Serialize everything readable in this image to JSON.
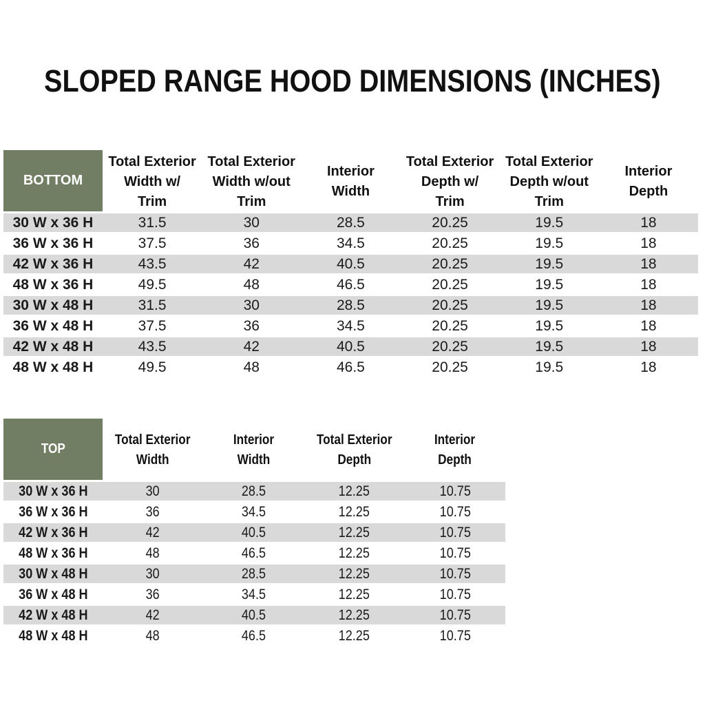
{
  "page": {
    "title": "SLOPED RANGE HOOD DIMENSIONS (INCHES)"
  },
  "colors": {
    "header_green": "#727E64",
    "row_stripe": "#D9D9D9",
    "text": "#1A1A1A",
    "corner_text": "#FFFFFF"
  },
  "tables": [
    {
      "id": "bottom",
      "corner_label": "BOTTOM",
      "columns": [
        "Total Exterior\nWidth w/\nTrim",
        "Total Exterior\nWidth w/out\nTrim",
        "Interior\nWidth",
        "Total Exterior\nDepth w/\nTrim",
        "Total Exterior\nDepth w/out\nTrim",
        "Interior\nDepth"
      ],
      "rows": [
        {
          "label": "30 W x 36 H",
          "values": [
            "31.5",
            "30",
            "28.5",
            "20.25",
            "19.5",
            "18"
          ]
        },
        {
          "label": "36 W x 36 H",
          "values": [
            "37.5",
            "36",
            "34.5",
            "20.25",
            "19.5",
            "18"
          ]
        },
        {
          "label": "42 W x 36 H",
          "values": [
            "43.5",
            "42",
            "40.5",
            "20.25",
            "19.5",
            "18"
          ]
        },
        {
          "label": "48 W x 36 H",
          "values": [
            "49.5",
            "48",
            "46.5",
            "20.25",
            "19.5",
            "18"
          ]
        },
        {
          "label": "30 W x 48 H",
          "values": [
            "31.5",
            "30",
            "28.5",
            "20.25",
            "19.5",
            "18"
          ]
        },
        {
          "label": "36 W x 48 H",
          "values": [
            "37.5",
            "36",
            "34.5",
            "20.25",
            "19.5",
            "18"
          ]
        },
        {
          "label": "42 W x 48 H",
          "values": [
            "43.5",
            "42",
            "40.5",
            "20.25",
            "19.5",
            "18"
          ]
        },
        {
          "label": "48 W x 48 H",
          "values": [
            "49.5",
            "48",
            "46.5",
            "20.25",
            "19.5",
            "18"
          ]
        }
      ]
    },
    {
      "id": "top",
      "corner_label": "TOP",
      "columns": [
        "Total Exterior\nWidth",
        "Interior\nWidth",
        "Total Exterior\nDepth",
        "Interior\nDepth"
      ],
      "rows": [
        {
          "label": "30 W x 36 H",
          "values": [
            "30",
            "28.5",
            "12.25",
            "10.75"
          ]
        },
        {
          "label": "36 W x 36 H",
          "values": [
            "36",
            "34.5",
            "12.25",
            "10.75"
          ]
        },
        {
          "label": "42 W x 36 H",
          "values": [
            "42",
            "40.5",
            "12.25",
            "10.75"
          ]
        },
        {
          "label": "48 W x 36 H",
          "values": [
            "48",
            "46.5",
            "12.25",
            "10.75"
          ]
        },
        {
          "label": "30 W x 48 H",
          "values": [
            "30",
            "28.5",
            "12.25",
            "10.75"
          ]
        },
        {
          "label": "36 W x 48 H",
          "values": [
            "36",
            "34.5",
            "12.25",
            "10.75"
          ]
        },
        {
          "label": "42 W x 48 H",
          "values": [
            "42",
            "40.5",
            "12.25",
            "10.75"
          ]
        },
        {
          "label": "48 W x 48 H",
          "values": [
            "48",
            "46.5",
            "12.25",
            "10.75"
          ]
        }
      ]
    }
  ]
}
